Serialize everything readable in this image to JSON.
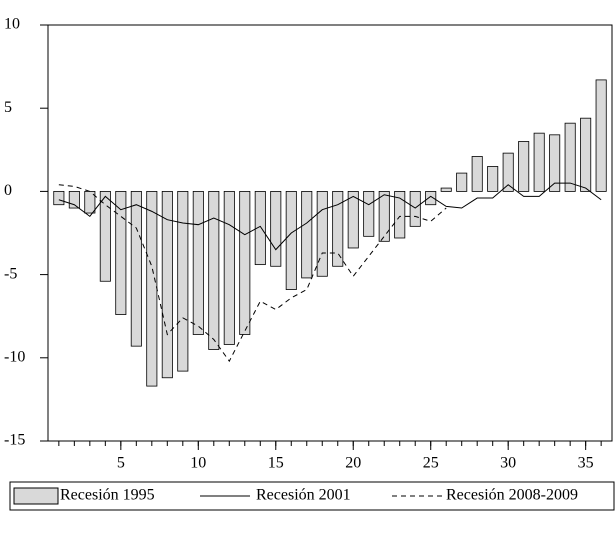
{
  "chart_data": {
    "type": "bar_line",
    "x": [
      1,
      2,
      3,
      4,
      5,
      6,
      7,
      8,
      9,
      10,
      11,
      12,
      13,
      14,
      15,
      16,
      17,
      18,
      19,
      20,
      21,
      22,
      23,
      24,
      25,
      26,
      27,
      28,
      29,
      30,
      31,
      32,
      33,
      34,
      35,
      36
    ],
    "xlim": [
      0.3,
      36.7
    ],
    "xticks": [
      5,
      10,
      15,
      20,
      25,
      30,
      35
    ],
    "ylim": [
      -15,
      10
    ],
    "yticks": [
      -15,
      -10,
      -5,
      0,
      5,
      10
    ],
    "series": [
      {
        "name": "Recesión 1995",
        "kind": "bar",
        "color": "#d9d9d9",
        "values": [
          -0.8,
          -1.0,
          -1.3,
          -5.4,
          -7.4,
          -9.3,
          -11.7,
          -11.2,
          -10.8,
          -8.6,
          -9.5,
          -9.2,
          -8.6,
          -4.4,
          -4.5,
          -5.9,
          -5.2,
          -5.1,
          -4.5,
          -3.4,
          -2.7,
          -3.0,
          -2.8,
          -2.1,
          -0.8,
          0.2,
          1.1,
          2.1,
          1.5,
          2.3,
          3.0,
          3.5,
          3.4,
          4.1,
          4.4,
          6.7
        ]
      },
      {
        "name": "Recesión 2001",
        "kind": "line",
        "color": "#000000",
        "values": [
          -0.5,
          -0.8,
          -1.5,
          -0.3,
          -1.1,
          -0.8,
          -1.2,
          -1.7,
          -1.9,
          -2.0,
          -1.6,
          -2.0,
          -2.6,
          -2.1,
          -3.5,
          -2.5,
          -1.9,
          -1.1,
          -0.8,
          -0.3,
          -0.8,
          -0.2,
          -0.4,
          -1.0,
          -0.3,
          -0.9,
          -1.0,
          -0.4,
          -0.4,
          0.4,
          -0.3,
          -0.3,
          0.5,
          0.5,
          0.2,
          -0.5
        ]
      },
      {
        "name": "Recesión 2008-2009",
        "kind": "dashed",
        "color": "#000000",
        "values": [
          0.4,
          0.3,
          0.0,
          -0.8,
          -1.5,
          -2.2,
          -4.5,
          -8.6,
          -7.6,
          -8.1,
          -8.9,
          -10.2,
          -8.4,
          -6.6,
          -7.1,
          -6.4,
          -5.9,
          -3.7,
          -3.7,
          -5.1,
          -3.9,
          -2.7,
          -1.5,
          -1.5,
          -1.8,
          -1.0,
          null,
          null,
          null,
          null,
          null,
          null,
          null,
          null,
          null,
          null
        ]
      }
    ]
  }
}
